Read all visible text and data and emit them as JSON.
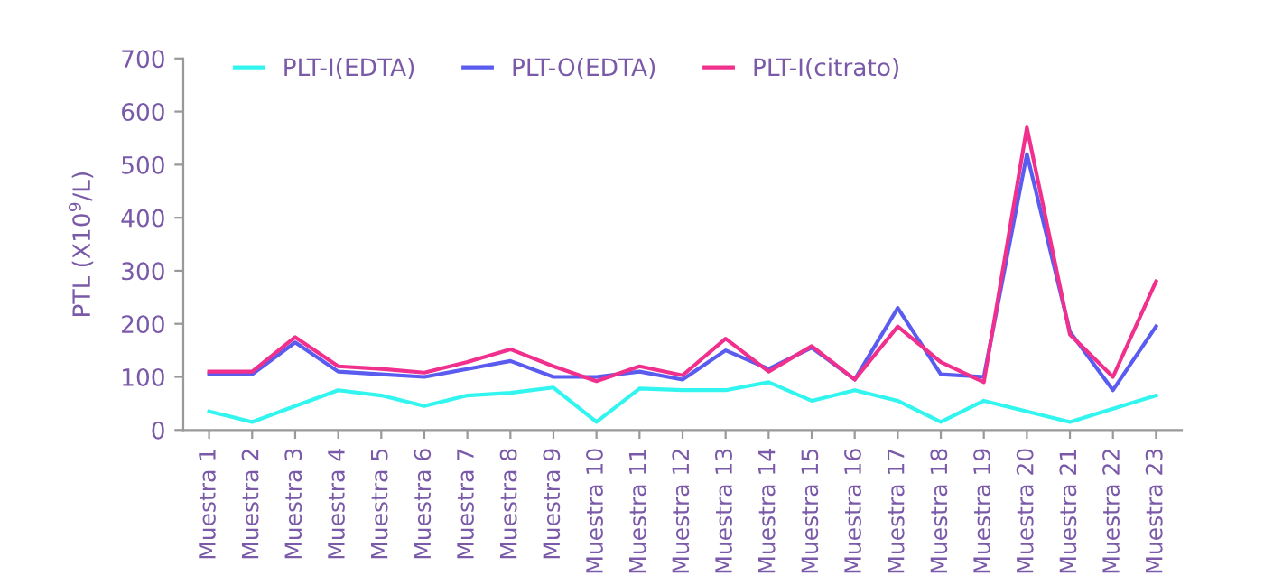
{
  "chart_data": {
    "type": "line",
    "ylabel": "PTL (X10$^{9}$/L)",
    "categories": [
      "Muestra 1",
      "Muestra 2",
      "Muestra 3",
      "Muestra 4",
      "Muestra 5",
      "Muestra 6",
      "Muestra 7",
      "Muestra 8",
      "Muestra 9",
      "Muestra 10",
      "Muestra 11",
      "Muestra 12",
      "Muestra 13",
      "Muestra 14",
      "Muestra 15",
      "Muestra 16",
      "Muestra 17",
      "Muestra 18",
      "Muestra 19",
      "Muestra 20",
      "Muestra 21",
      "Muestra 22",
      "Muestra 23"
    ],
    "series": [
      {
        "name": "PLT-I(EDTA)",
        "color": "#33f5f0",
        "values": [
          35,
          15,
          45,
          75,
          65,
          45,
          65,
          70,
          80,
          15,
          78,
          75,
          75,
          90,
          55,
          75,
          55,
          15,
          55,
          35,
          15,
          40,
          65
        ]
      },
      {
        "name": "PLT-O(EDTA)",
        "color": "#5a5cf0",
        "values": [
          105,
          105,
          165,
          110,
          105,
          100,
          115,
          130,
          100,
          100,
          110,
          95,
          150,
          115,
          155,
          95,
          230,
          105,
          100,
          520,
          185,
          75,
          195
        ]
      },
      {
        "name": "PLT-I(citrato)",
        "color": "#f0308c",
        "values": [
          110,
          110,
          175,
          120,
          115,
          108,
          128,
          152,
          120,
          92,
          120,
          103,
          172,
          110,
          158,
          95,
          195,
          128,
          90,
          570,
          180,
          100,
          280
        ]
      }
    ],
    "ylim": [
      0,
      700
    ],
    "yticks": [
      0,
      100,
      200,
      300,
      400,
      500,
      600,
      700
    ],
    "grid": false,
    "legend": "top left",
    "marker": "none",
    "line_style": "solid"
  }
}
